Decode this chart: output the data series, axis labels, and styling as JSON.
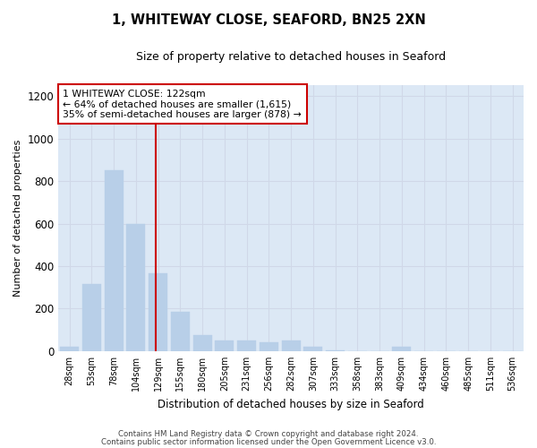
{
  "title1": "1, WHITEWAY CLOSE, SEAFORD, BN25 2XN",
  "title2": "Size of property relative to detached houses in Seaford",
  "xlabel": "Distribution of detached houses by size in Seaford",
  "ylabel": "Number of detached properties",
  "bar_labels": [
    "28sqm",
    "53sqm",
    "78sqm",
    "104sqm",
    "129sqm",
    "155sqm",
    "180sqm",
    "205sqm",
    "231sqm",
    "256sqm",
    "282sqm",
    "307sqm",
    "333sqm",
    "358sqm",
    "383sqm",
    "409sqm",
    "434sqm",
    "460sqm",
    "485sqm",
    "511sqm",
    "536sqm"
  ],
  "bar_values": [
    20,
    315,
    850,
    600,
    365,
    185,
    75,
    50,
    50,
    40,
    50,
    20,
    5,
    0,
    0,
    20,
    0,
    0,
    0,
    0,
    0
  ],
  "bar_color": "#b8cfe8",
  "bar_edge_color": "#b8cfe8",
  "grid_color": "#d0d8e8",
  "bg_color": "#dce8f5",
  "vline_color": "#cc0000",
  "annotation_text": "1 WHITEWAY CLOSE: 122sqm\n← 64% of detached houses are smaller (1,615)\n35% of semi-detached houses are larger (878) →",
  "annotation_box_color": "#ffffff",
  "annotation_box_edge": "#cc0000",
  "ylim": [
    0,
    1250
  ],
  "yticks": [
    0,
    200,
    400,
    600,
    800,
    1000,
    1200
  ],
  "footer1": "Contains HM Land Registry data © Crown copyright and database right 2024.",
  "footer2": "Contains public sector information licensed under the Open Government Licence v3.0."
}
